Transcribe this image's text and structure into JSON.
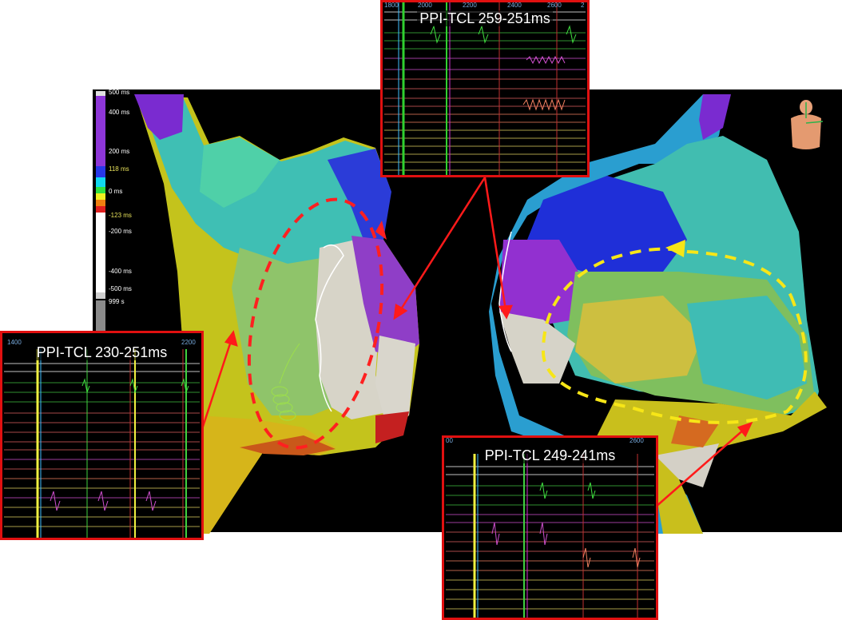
{
  "scale": {
    "labels": [
      "500 ms",
      "400 ms",
      "200 ms",
      "118 ms",
      "0 ms",
      "-123 ms",
      "-200 ms",
      "-400 ms",
      "-500 ms",
      "999 s"
    ]
  },
  "panels": [
    {
      "title": "PPI-TCL 259-251ms",
      "ruler": [
        "1800",
        "2000",
        "2200",
        "2400",
        "2600",
        "2"
      ]
    },
    {
      "title": "PPI-TCL 230-251ms",
      "ruler": [
        "1400",
        "2200"
      ]
    },
    {
      "title": "PPI-TCL 249-241ms",
      "ruler": [
        "00",
        "2600"
      ]
    }
  ],
  "colors": {
    "panel_border": "#e01010",
    "left_loop": "#ff2020",
    "right_loop": "#f7e617",
    "arrow": "#ff1a1a",
    "scale_highlight": "#e6e05a"
  },
  "icons": [
    "torso-orientation-icon"
  ]
}
